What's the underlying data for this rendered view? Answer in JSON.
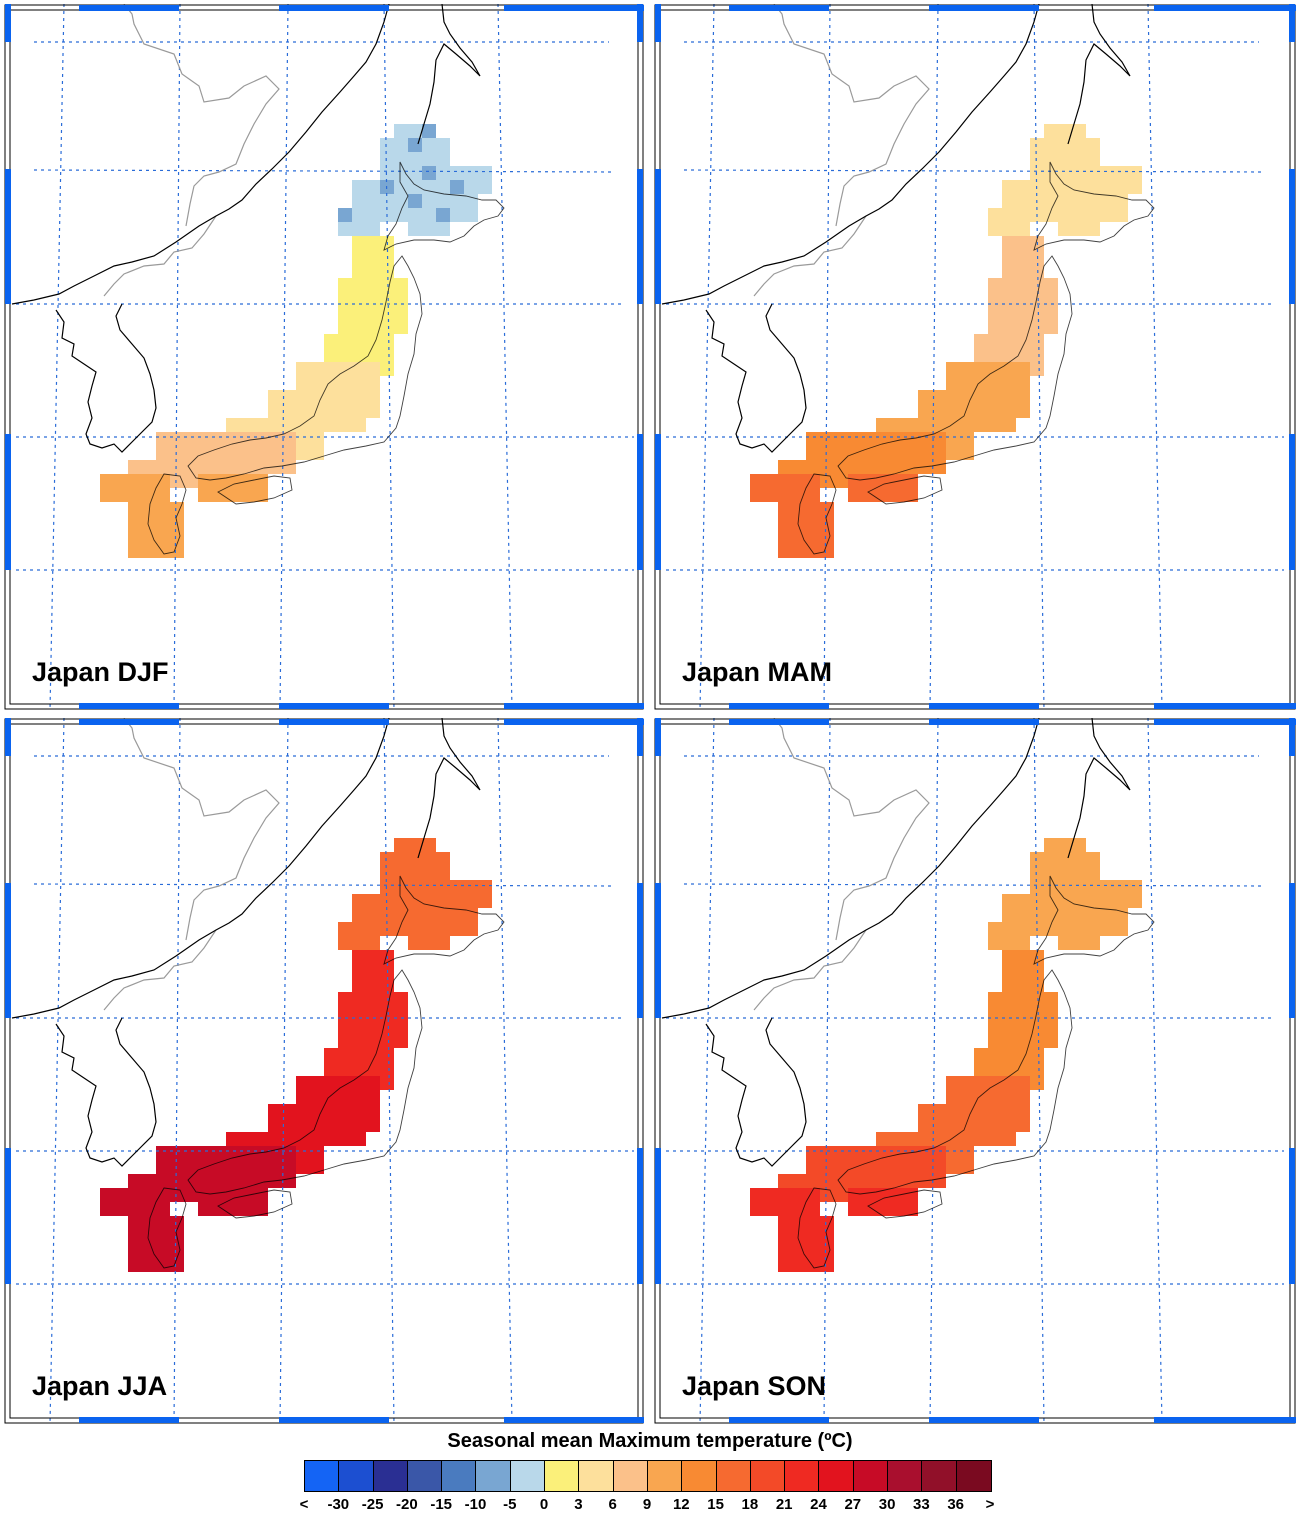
{
  "panels": [
    {
      "label": "Japan DJF",
      "season": "DJF"
    },
    {
      "label": "Japan MAM",
      "season": "MAM"
    },
    {
      "label": "Japan JJA",
      "season": "JJA"
    },
    {
      "label": "Japan SON",
      "season": "SON"
    }
  ],
  "colorbar": {
    "title": "Seasonal mean Maximum temperature (ºC)",
    "tick_labels": [
      "<",
      "-30",
      "-25",
      "-20",
      "-15",
      "-10",
      "-5",
      "0",
      "3",
      "6",
      "9",
      "12",
      "15",
      "18",
      "21",
      "24",
      "27",
      "30",
      "33",
      "36",
      ">"
    ],
    "colors": [
      "#1464f5",
      "#1c4fd1",
      "#2a2f93",
      "#3a57a8",
      "#4a7bbf",
      "#79a6d2",
      "#b9d8ea",
      "#fbf07a",
      "#fde09c",
      "#fbc18a",
      "#f9a650",
      "#f88a33",
      "#f66a30",
      "#f34a28",
      "#ef2a22",
      "#e2131e",
      "#c70b26",
      "#a90f2e",
      "#911029",
      "#7a0a20"
    ]
  },
  "colors": {
    "frame_blue": "#0a63ef",
    "grid_blue": "#2a6cd8",
    "coast_black": "#000000",
    "border_grey": "#9a9a9a",
    "DJF": {
      "hokkaido": "#b9d8ea",
      "hokkaido_dark": "#79a6d2",
      "north": "#fbf07a",
      "central": "#fde09c",
      "west": "#fbc18a",
      "south": "#f9a650"
    },
    "MAM": {
      "hokkaido": "#fde09c",
      "north": "#fbc18a",
      "central": "#f9a650",
      "west": "#f88a33",
      "south": "#f66a30"
    },
    "JJA": {
      "hokkaido": "#f66a30",
      "north": "#ef2a22",
      "central": "#e2131e",
      "west": "#c70b26",
      "south": "#c70b26"
    },
    "SON": {
      "hokkaido": "#f9a650",
      "north": "#f88a33",
      "central": "#f66a30",
      "west": "#f34a28",
      "south": "#ef2a22"
    }
  }
}
